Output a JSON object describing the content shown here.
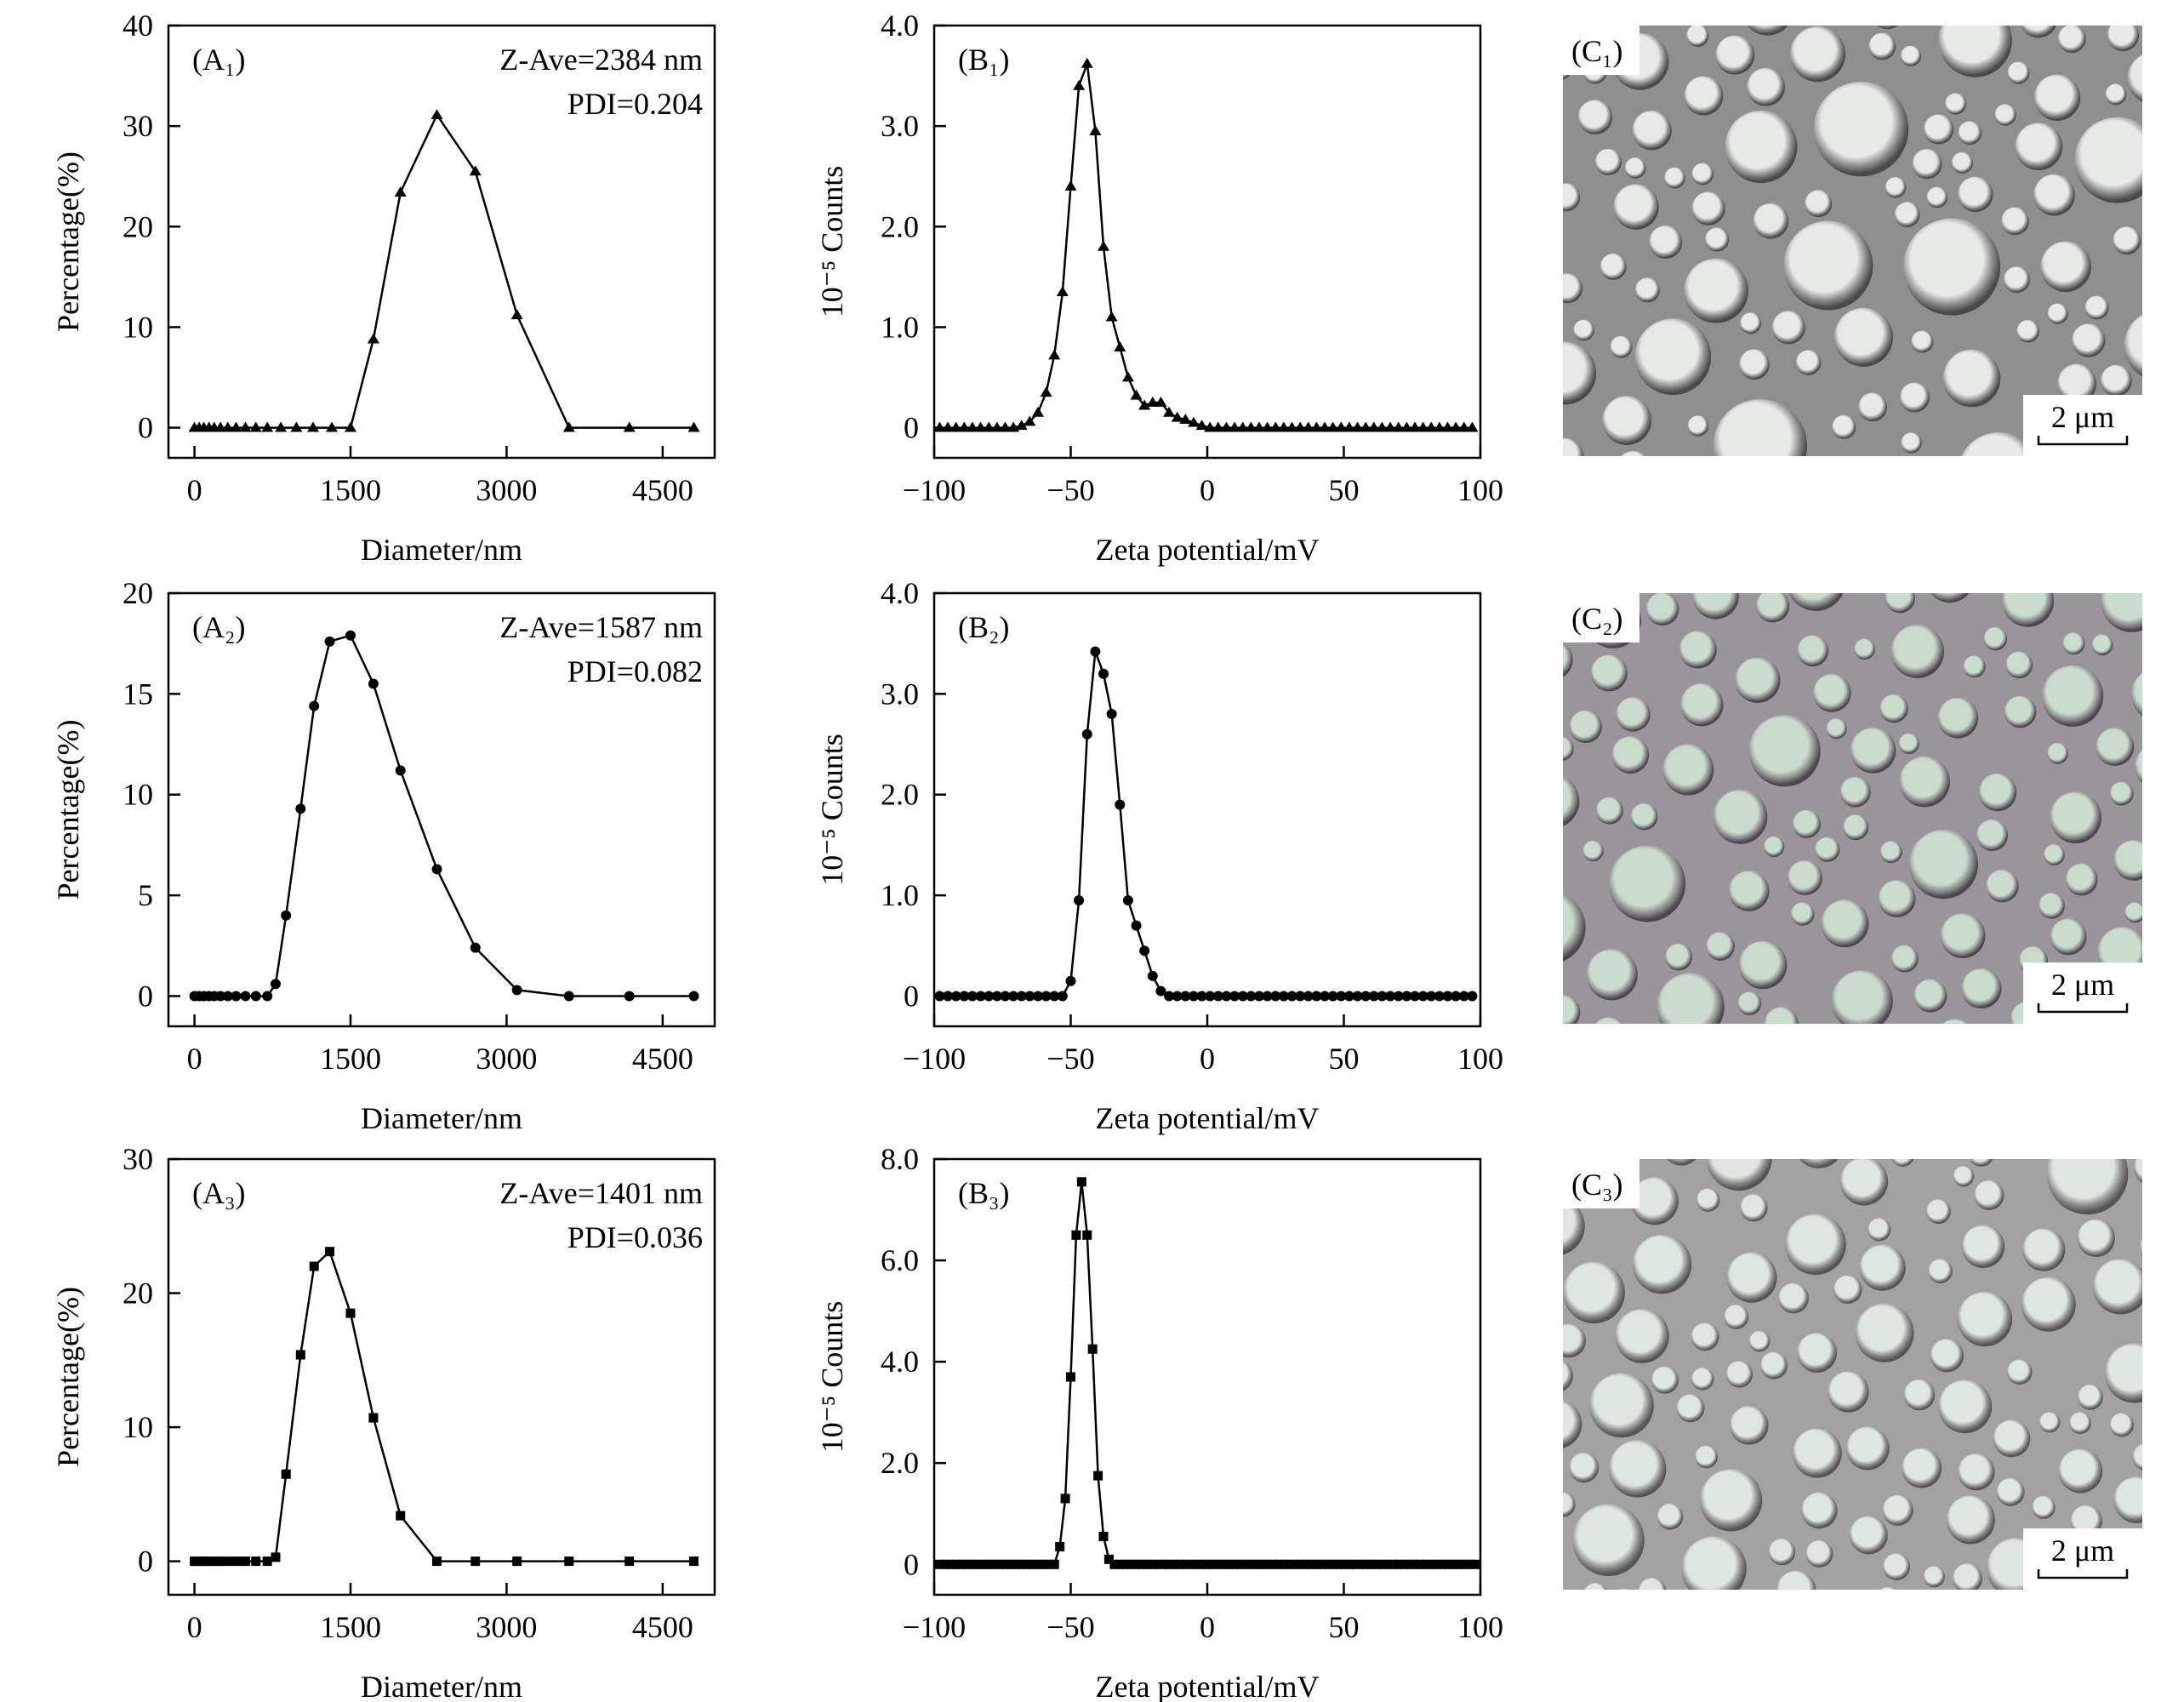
{
  "chart_data": [
    {
      "panel": "(A₁)",
      "type": "line",
      "marker": "triangle",
      "annotations": [
        "Z-Ave=2384 nm",
        "PDI=0.204"
      ],
      "xlabel": "Diameter/nm",
      "ylabel": "Percentage(%)",
      "xlim": [
        -250,
        5000
      ],
      "ylim": [
        -3,
        40
      ],
      "xticks": [
        0,
        1500,
        3000,
        4500
      ],
      "xtick_labels": [
        "0",
        "1500",
        "3000",
        "4500"
      ],
      "yticks": [
        0,
        10,
        20,
        30,
        40
      ],
      "ytick_labels": [
        "0",
        "10",
        "20",
        "30",
        "40"
      ],
      "x": [
        0,
        45,
        90,
        140,
        190,
        250,
        320,
        400,
        490,
        590,
        700,
        830,
        980,
        1140,
        1320,
        1500,
        1720,
        1980,
        2330,
        2700,
        3100,
        3600,
        4180,
        4800
      ],
      "y": [
        0,
        0,
        0,
        0,
        0,
        0,
        0,
        0,
        0,
        0,
        0,
        0,
        0,
        0,
        0,
        0,
        8.8,
        23.4,
        31.1,
        25.5,
        11.2,
        0,
        0,
        0
      ]
    },
    {
      "panel": "(B₁)",
      "type": "line",
      "marker": "triangle",
      "xlabel": "Zeta potential/mV",
      "ylabel": "10⁻⁵ Counts",
      "xlim": [
        -100,
        100
      ],
      "ylim": [
        -0.3,
        4.0
      ],
      "xticks": [
        -100,
        -50,
        0,
        50,
        100
      ],
      "xtick_labels": [
        "−100",
        "−50",
        "0",
        "50",
        "100"
      ],
      "yticks": [
        0,
        1,
        2,
        3,
        4
      ],
      "ytick_labels": [
        "0",
        "1.0",
        "2.0",
        "3.0",
        "4.0"
      ],
      "x": [
        -98,
        -95,
        -92,
        -89,
        -86,
        -83,
        -80,
        -77,
        -74,
        -71,
        -68,
        -65,
        -62,
        -59,
        -56,
        -53,
        -50,
        -47,
        -44,
        -41,
        -38,
        -35,
        -32,
        -29,
        -26,
        -23,
        -20,
        -17,
        -14,
        -11,
        -8,
        -5,
        -2,
        1,
        4,
        7,
        10,
        13,
        16,
        19,
        22,
        25,
        28,
        31,
        34,
        37,
        40,
        43,
        46,
        49,
        52,
        55,
        58,
        61,
        64,
        67,
        70,
        73,
        76,
        79,
        82,
        85,
        88,
        91,
        94,
        97
      ],
      "y": [
        0,
        0,
        0,
        0,
        0,
        0,
        0,
        0,
        0,
        0,
        0.02,
        0.06,
        0.15,
        0.35,
        0.72,
        1.35,
        2.4,
        3.4,
        3.62,
        2.95,
        1.8,
        1.1,
        0.8,
        0.5,
        0.32,
        0.22,
        0.25,
        0.25,
        0.15,
        0.1,
        0.08,
        0.05,
        0.02,
        0,
        0,
        0,
        0,
        0,
        0,
        0,
        0,
        0,
        0,
        0,
        0,
        0,
        0,
        0,
        0,
        0,
        0,
        0,
        0,
        0,
        0,
        0,
        0,
        0,
        0,
        0,
        0,
        0,
        0,
        0,
        0,
        0
      ]
    },
    {
      "panel": "(A₂)",
      "type": "line",
      "marker": "circle",
      "annotations": [
        "Z-Ave=1587 nm",
        "PDI=0.082"
      ],
      "xlabel": "Diameter/nm",
      "ylabel": "Percentage(%)",
      "xlim": [
        -250,
        5000
      ],
      "ylim": [
        -1.5,
        20
      ],
      "xticks": [
        0,
        1500,
        3000,
        4500
      ],
      "xtick_labels": [
        "0",
        "1500",
        "3000",
        "4500"
      ],
      "yticks": [
        0,
        5,
        10,
        15,
        20
      ],
      "ytick_labels": [
        "0",
        "5",
        "10",
        "15",
        "20"
      ],
      "x": [
        0,
        45,
        90,
        140,
        190,
        250,
        320,
        400,
        490,
        590,
        700,
        780,
        880,
        1020,
        1150,
        1300,
        1500,
        1720,
        1980,
        2330,
        2700,
        3100,
        3600,
        4180,
        4800
      ],
      "y": [
        0,
        0,
        0,
        0,
        0,
        0,
        0,
        0,
        0,
        0,
        0,
        0.6,
        4.0,
        9.3,
        14.4,
        17.6,
        17.9,
        15.5,
        11.2,
        6.3,
        2.4,
        0.3,
        0,
        0,
        0
      ]
    },
    {
      "panel": "(B₂)",
      "type": "line",
      "marker": "circle",
      "xlabel": "Zeta potential/mV",
      "ylabel": "10⁻⁵ Counts",
      "xlim": [
        -100,
        100
      ],
      "ylim": [
        -0.3,
        4.0
      ],
      "xticks": [
        -100,
        -50,
        0,
        50,
        100
      ],
      "xtick_labels": [
        "−100",
        "−50",
        "0",
        "50",
        "100"
      ],
      "yticks": [
        0,
        1,
        2,
        3,
        4
      ],
      "ytick_labels": [
        "0",
        "1.0",
        "2.0",
        "3.0",
        "4.0"
      ],
      "x": [
        -98,
        -95,
        -92,
        -89,
        -86,
        -83,
        -80,
        -77,
        -74,
        -71,
        -68,
        -65,
        -62,
        -59,
        -56,
        -53,
        -50,
        -47,
        -44,
        -41,
        -38,
        -35,
        -32,
        -29,
        -26,
        -23,
        -20,
        -17,
        -14,
        -11,
        -8,
        -5,
        -2,
        1,
        4,
        7,
        10,
        13,
        16,
        19,
        22,
        25,
        28,
        31,
        34,
        37,
        40,
        43,
        46,
        49,
        52,
        55,
        58,
        61,
        64,
        67,
        70,
        73,
        76,
        79,
        82,
        85,
        88,
        91,
        94,
        97
      ],
      "y": [
        0,
        0,
        0,
        0,
        0,
        0,
        0,
        0,
        0,
        0,
        0,
        0,
        0,
        0,
        0,
        0,
        0.15,
        0.95,
        2.6,
        3.42,
        3.2,
        2.8,
        1.9,
        0.95,
        0.7,
        0.45,
        0.2,
        0.05,
        0,
        0,
        0,
        0,
        0,
        0,
        0,
        0,
        0,
        0,
        0,
        0,
        0,
        0,
        0,
        0,
        0,
        0,
        0,
        0,
        0,
        0,
        0,
        0,
        0,
        0,
        0,
        0,
        0,
        0,
        0,
        0,
        0,
        0,
        0,
        0,
        0,
        0
      ]
    },
    {
      "panel": "(A₃)",
      "type": "line",
      "marker": "square",
      "annotations": [
        "Z-Ave=1401 nm",
        "PDI=0.036"
      ],
      "xlabel": "Diameter/nm",
      "ylabel": "Percentage(%)",
      "xlim": [
        -250,
        5000
      ],
      "ylim": [
        -2.5,
        30
      ],
      "xticks": [
        0,
        1500,
        3000,
        4500
      ],
      "xtick_labels": [
        "0",
        "1500",
        "3000",
        "4500"
      ],
      "yticks": [
        0,
        10,
        20,
        30
      ],
      "ytick_labels": [
        "0",
        "10",
        "20",
        "30"
      ],
      "x": [
        0,
        45,
        90,
        140,
        190,
        250,
        320,
        400,
        490,
        590,
        700,
        780,
        880,
        1020,
        1150,
        1300,
        1500,
        1720,
        1980,
        2330,
        2700,
        3100,
        3600,
        4180,
        4800
      ],
      "y": [
        0,
        0,
        0,
        0,
        0,
        0,
        0,
        0,
        0,
        0,
        0,
        0.3,
        6.5,
        15.4,
        22.0,
        23.1,
        18.5,
        10.7,
        3.4,
        0,
        0,
        0,
        0,
        0,
        0
      ]
    },
    {
      "panel": "(B₃)",
      "type": "line",
      "marker": "square",
      "xlabel": "Zeta potential/mV",
      "ylabel": "10⁻⁵ Counts",
      "xlim": [
        -100,
        100
      ],
      "ylim": [
        -0.6,
        8.0
      ],
      "xticks": [
        -100,
        -50,
        0,
        50,
        100
      ],
      "xtick_labels": [
        "−100",
        "−50",
        "0",
        "50",
        "100"
      ],
      "yticks": [
        0,
        2,
        4,
        6,
        8
      ],
      "ytick_labels": [
        "0",
        "2.0",
        "4.0",
        "6.0",
        "8.0"
      ],
      "x": [
        -98,
        -96,
        -94,
        -92,
        -90,
        -88,
        -86,
        -84,
        -82,
        -80,
        -78,
        -76,
        -74,
        -72,
        -70,
        -68,
        -66,
        -64,
        -62,
        -60,
        -58,
        -56,
        -54,
        -52,
        -50,
        -48,
        -46,
        -44,
        -42,
        -40,
        -38,
        -36,
        -34,
        -32,
        -30,
        -28,
        -26,
        -24,
        -22,
        -20,
        -18,
        -16,
        -14,
        -12,
        -10,
        -8,
        -6,
        -4,
        -2,
        0,
        2,
        4,
        6,
        8,
        10,
        12,
        14,
        16,
        18,
        20,
        22,
        24,
        26,
        28,
        30,
        32,
        34,
        36,
        38,
        40,
        42,
        44,
        46,
        48,
        50,
        52,
        54,
        56,
        58,
        60,
        62,
        64,
        66,
        68,
        70,
        72,
        74,
        76,
        78,
        80,
        82,
        84,
        86,
        88,
        90,
        92,
        94,
        96,
        98
      ],
      "y": [
        0,
        0,
        0,
        0,
        0,
        0,
        0,
        0,
        0,
        0,
        0,
        0,
        0,
        0,
        0,
        0,
        0,
        0,
        0,
        0,
        0,
        0,
        0.35,
        1.3,
        3.7,
        6.5,
        7.55,
        6.5,
        4.25,
        1.75,
        0.55,
        0.1,
        0,
        0,
        0,
        0,
        0,
        0,
        0,
        0,
        0,
        0,
        0,
        0,
        0,
        0,
        0,
        0,
        0,
        0,
        0,
        0,
        0,
        0,
        0,
        0,
        0,
        0,
        0,
        0,
        0,
        0,
        0,
        0,
        0,
        0,
        0,
        0,
        0,
        0,
        0,
        0,
        0,
        0,
        0,
        0,
        0,
        0,
        0,
        0,
        0,
        0,
        0,
        0,
        0,
        0,
        0,
        0,
        0,
        0,
        0,
        0,
        0,
        0,
        0,
        0,
        0,
        0,
        0
      ]
    }
  ],
  "micrographs": [
    {
      "panel": "(C₁)",
      "scale_bar": "2  μm",
      "colors": {
        "background": "#8f8f8f",
        "particle": "#e6e9e6",
        "rim": "#4a4a4a"
      }
    },
    {
      "panel": "(C₂)",
      "scale_bar": "2  μm",
      "colors": {
        "background": "#9a959b",
        "particle": "#c9dccd",
        "rim": "#4e4650"
      }
    },
    {
      "panel": "(C₃)",
      "scale_bar": "2  μm",
      "colors": {
        "background": "#a2a2a2",
        "particle": "#dfe6e0",
        "rim": "#555555"
      }
    }
  ]
}
